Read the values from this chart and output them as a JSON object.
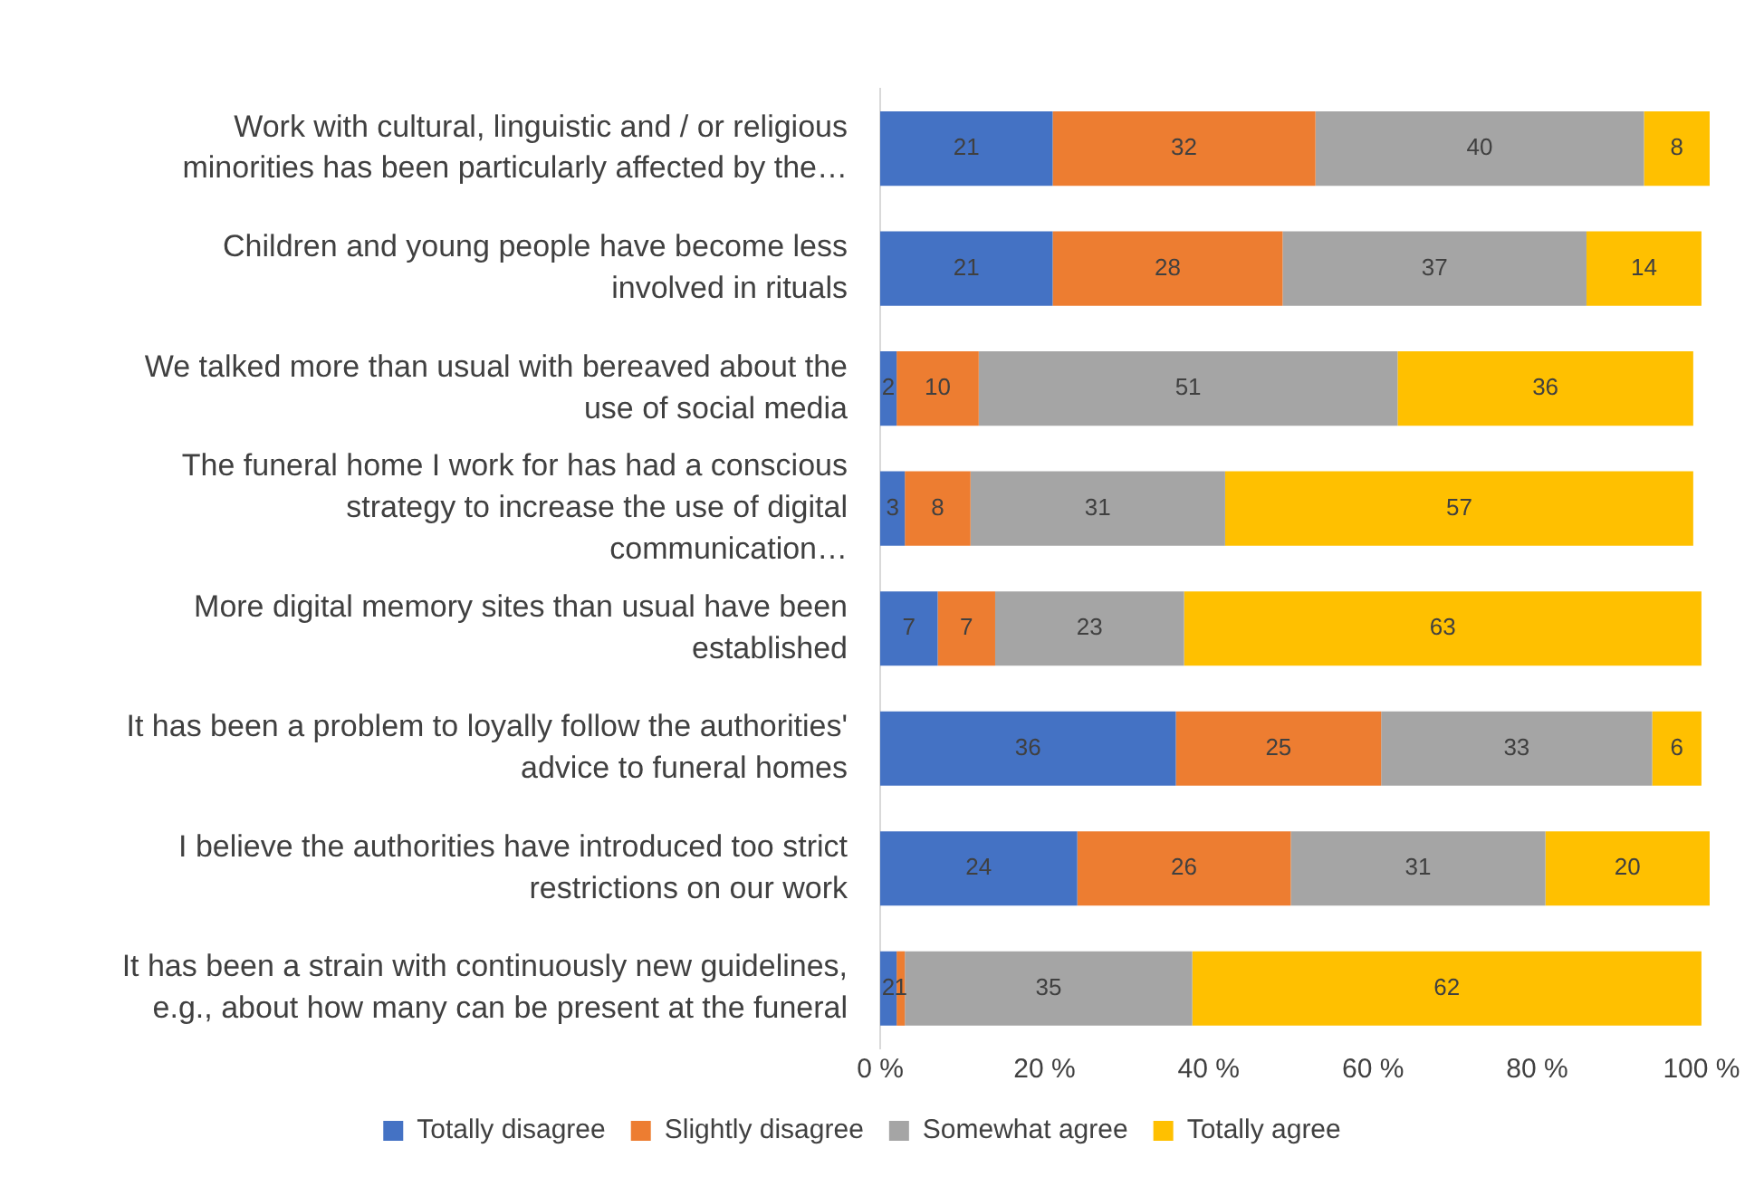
{
  "chart_data": {
    "type": "bar",
    "orientation": "horizontal",
    "stacked": true,
    "categories": [
      "Work with cultural, linguistic and / or religious minorities has been particularly affected by the…",
      "Children and young people have become less involved in rituals",
      "We talked more than usual with bereaved about the use of social media",
      "The funeral home I work for has had a conscious strategy to increase the use of digital communication…",
      "More digital memory sites than usual have been established",
      "It has been a problem to loyally follow the authorities' advice to funeral homes",
      "I believe the authorities have introduced too strict restrictions on our work",
      "It has been a strain with continuously new guidelines, e.g., about how many can be present at the funeral"
    ],
    "series": [
      {
        "name": "Totally disagree",
        "color": "#4472c4",
        "values": [
          21,
          21,
          2,
          3,
          7,
          36,
          24,
          2
        ]
      },
      {
        "name": "Slightly disagree",
        "color": "#ed7d31",
        "values": [
          32,
          28,
          10,
          8,
          7,
          25,
          26,
          1
        ]
      },
      {
        "name": "Somewhat agree",
        "color": "#a5a5a5",
        "values": [
          40,
          37,
          51,
          31,
          23,
          33,
          31,
          35
        ]
      },
      {
        "name": "Totally agree",
        "color": "#ffc000",
        "values": [
          8,
          14,
          36,
          57,
          63,
          6,
          20,
          62
        ]
      }
    ],
    "xlim": [
      0,
      101
    ],
    "xticks": [
      {
        "value": 0,
        "label": "0 %"
      },
      {
        "value": 20,
        "label": "20 %"
      },
      {
        "value": 40,
        "label": "40 %"
      },
      {
        "value": 60,
        "label": "60 %"
      },
      {
        "value": 80,
        "label": "80 %"
      },
      {
        "value": 100,
        "label": "100 %"
      }
    ],
    "data_labels": true,
    "legend": "bottom",
    "grid": false
  }
}
